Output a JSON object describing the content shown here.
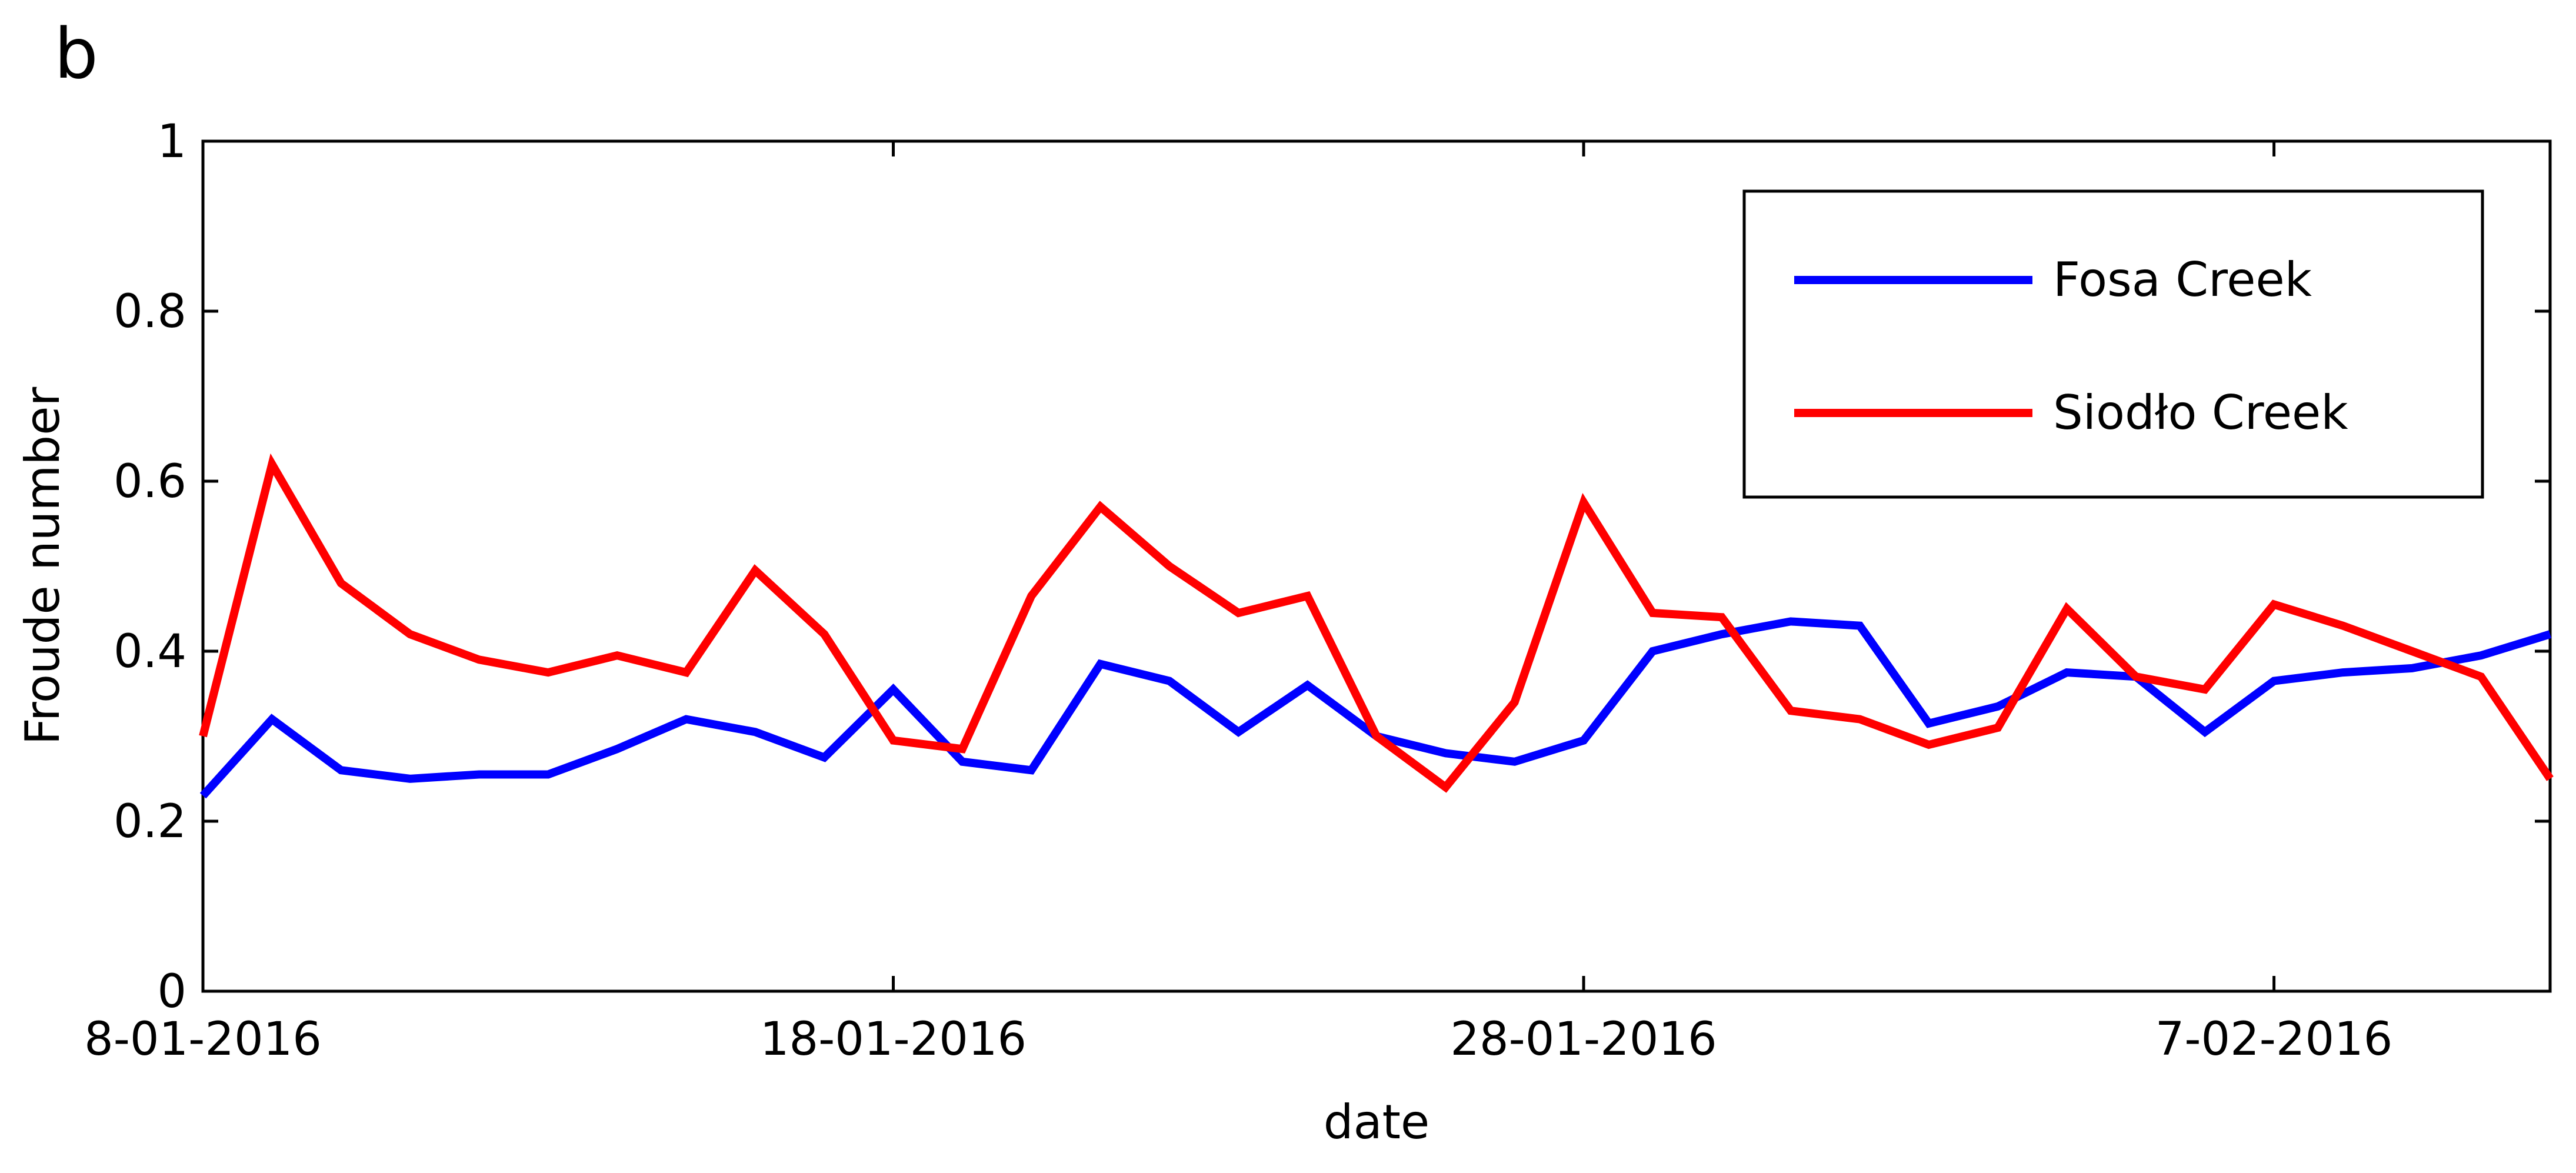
{
  "panel_label": "b",
  "colors": {
    "fosa": "#0000ff",
    "siodlo": "#ff0000",
    "axis": "#000000"
  },
  "chart_data": {
    "type": "line",
    "xlabel": "date",
    "ylabel": "Froude number",
    "xlim": [
      "2016-01-08",
      "2016-02-11"
    ],
    "ylim": [
      0,
      1
    ],
    "xticks": [
      {
        "date": "2016-01-08",
        "label": "8-01-2016"
      },
      {
        "date": "2016-01-18",
        "label": "18-01-2016"
      },
      {
        "date": "2016-01-28",
        "label": "28-01-2016"
      },
      {
        "date": "2016-02-07",
        "label": "7-02-2016"
      }
    ],
    "yticks": [
      {
        "value": 0,
        "label": "0"
      },
      {
        "value": 0.2,
        "label": "0.2"
      },
      {
        "value": 0.4,
        "label": "0.4"
      },
      {
        "value": 0.6,
        "label": "0.6"
      },
      {
        "value": 0.8,
        "label": "0.8"
      },
      {
        "value": 1,
        "label": "1"
      }
    ],
    "grid": false,
    "legend_position": "top-right",
    "x": [
      "2016-01-08",
      "2016-01-09",
      "2016-01-10",
      "2016-01-11",
      "2016-01-12",
      "2016-01-13",
      "2016-01-14",
      "2016-01-15",
      "2016-01-16",
      "2016-01-17",
      "2016-01-18",
      "2016-01-19",
      "2016-01-20",
      "2016-01-21",
      "2016-01-22",
      "2016-01-23",
      "2016-01-24",
      "2016-01-25",
      "2016-01-26",
      "2016-01-27",
      "2016-01-28",
      "2016-01-29",
      "2016-01-30",
      "2016-01-31",
      "2016-02-01",
      "2016-02-02",
      "2016-02-03",
      "2016-02-04",
      "2016-02-05",
      "2016-02-06",
      "2016-02-07",
      "2016-02-08",
      "2016-02-09",
      "2016-02-10",
      "2016-02-11"
    ],
    "series": [
      {
        "name": "Fosa Creek",
        "color": "#0000ff",
        "values": [
          0.23,
          0.32,
          0.26,
          0.25,
          0.255,
          0.255,
          0.285,
          0.32,
          0.305,
          0.275,
          0.355,
          0.27,
          0.26,
          0.385,
          0.365,
          0.305,
          0.36,
          0.3,
          0.28,
          0.27,
          0.295,
          0.4,
          0.42,
          0.435,
          0.43,
          0.315,
          0.335,
          0.375,
          0.37,
          0.305,
          0.365,
          0.375,
          0.38,
          0.395,
          0.42
        ]
      },
      {
        "name": "Siodło Creek",
        "color": "#ff0000",
        "values": [
          0.3,
          0.62,
          0.48,
          0.42,
          0.39,
          0.375,
          0.395,
          0.375,
          0.495,
          0.42,
          0.295,
          0.285,
          0.465,
          0.57,
          0.5,
          0.445,
          0.465,
          0.3,
          0.24,
          0.34,
          0.575,
          0.445,
          0.44,
          0.33,
          0.32,
          0.29,
          0.31,
          0.45,
          0.37,
          0.355,
          0.455,
          0.43,
          0.4,
          0.37,
          0.25
        ]
      }
    ]
  }
}
